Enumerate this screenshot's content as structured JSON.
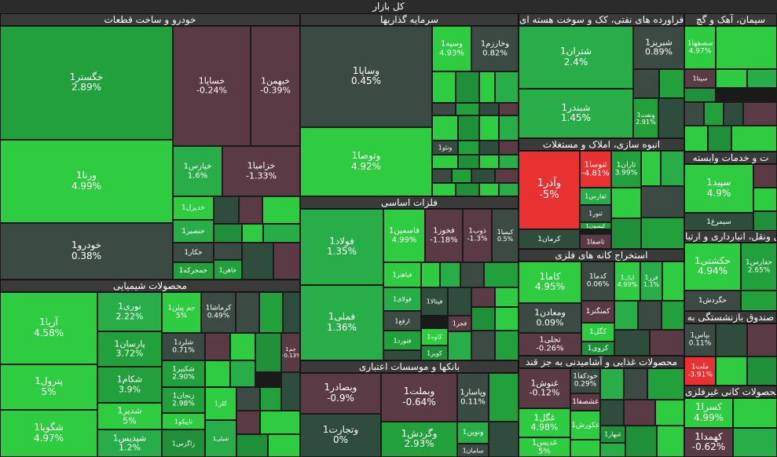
{
  "title": "کل بازار",
  "colors": {
    "strong_up": "#2ecc40",
    "up": "#22a03c",
    "mid_up": "#27ae48",
    "flat": "#2f4d3d",
    "down": "#5a3a44",
    "strong_down": "#e83131",
    "dark": "#3b4b44"
  },
  "chart_data": {
    "type": "treemap",
    "title": "کل بازار",
    "sectors": [
      {
        "name": "خودرو و ساخت قطعات",
        "items": [
          {
            "name": "خگستر1",
            "change": "2.89%"
          },
          {
            "name": "ورنا1",
            "change": "4.99%"
          },
          {
            "name": "خودرو1",
            "change": "0.38%"
          },
          {
            "name": "خساپا1",
            "change": "-0.24%"
          },
          {
            "name": "خبهمن1",
            "change": "-0.39%"
          },
          {
            "name": "خپارس1",
            "change": "1.6%"
          },
          {
            "name": "خزامیا1",
            "change": "-1.33%"
          },
          {
            "name": "خدیزل1",
            "change": ""
          },
          {
            "name": "خنصیر1",
            "change": ""
          },
          {
            "name": "خکار1",
            "change": ""
          },
          {
            "name": "خمحرکه1",
            "change": ""
          },
          {
            "name": "خاهن1",
            "change": ""
          }
        ]
      },
      {
        "name": "سرمایه گذاریها",
        "items": [
          {
            "name": "وساپا1",
            "change": "0.45%"
          },
          {
            "name": "وتوصا1",
            "change": "4.92%"
          },
          {
            "name": "وسپه1",
            "change": "4.93%"
          },
          {
            "name": "وخارزم1",
            "change": "0.82%"
          },
          {
            "name": "ونئو1",
            "change": ""
          }
        ]
      },
      {
        "name": "فراورده های نفتی، کک و سوخت هسته ای",
        "items": [
          {
            "name": "شتران1",
            "change": "2.4%"
          },
          {
            "name": "شبریز1",
            "change": "0.89%"
          },
          {
            "name": "شبندر1",
            "change": "1.45%"
          },
          {
            "name": "ونفت1",
            "change": "2.91%"
          }
        ]
      },
      {
        "name": "سیمان، آهک و گچ",
        "items": [
          {
            "name": "سصفها1",
            "change": "4.97%"
          },
          {
            "name": "سیتا1",
            "change": ""
          }
        ]
      },
      {
        "name": "انبوه سازی، املاک و مستغلات",
        "items": [
          {
            "name": "وآذر1",
            "change": "-5%"
          },
          {
            "name": "ثنوسا1",
            "change": "-4.81%"
          },
          {
            "name": "ثاران1",
            "change": "3.99%"
          },
          {
            "name": "ثفارس1",
            "change": ""
          },
          {
            "name": "ثنور1",
            "change": ""
          },
          {
            "name": "کیسون1",
            "change": ""
          },
          {
            "name": "ثامان1",
            "change": ""
          },
          {
            "name": "کرمان1",
            "change": ""
          },
          {
            "name": "ثاصفا1",
            "change": ""
          }
        ]
      },
      {
        "name": "ت و خدمات وابسته",
        "items": [
          {
            "name": "سپید1",
            "change": "4.9%"
          },
          {
            "name": "سیمرغ1",
            "change": ""
          }
        ]
      },
      {
        "name": "فلزات اساسی",
        "items": [
          {
            "name": "فولاد1",
            "change": "1.35%"
          },
          {
            "name": "فملی1",
            "change": "1.36%"
          },
          {
            "name": "فاسمین1",
            "change": "4.99%"
          },
          {
            "name": "فخوز1",
            "change": "-1.18%"
          },
          {
            "name": "ذوب1",
            "change": "-1.3%"
          },
          {
            "name": "کیمیا1",
            "change": "0.5%"
          },
          {
            "name": "فباهنر1",
            "change": ""
          },
          {
            "name": "فولای1",
            "change": ""
          },
          {
            "name": "ارفع1",
            "change": ""
          },
          {
            "name": "فنورد1",
            "change": ""
          },
          {
            "name": "فیتالا1",
            "change": ""
          },
          {
            "name": "فجر1",
            "change": ""
          },
          {
            "name": "کاوه1",
            "change": ""
          },
          {
            "name": "کویر1",
            "change": ""
          }
        ]
      },
      {
        "name": "استخراج کانه های فلزی",
        "items": [
          {
            "name": "کاما1",
            "change": "4.95%"
          },
          {
            "name": "کدما1",
            "change": "0.06%"
          },
          {
            "name": "ایال1",
            "change": "4.99%"
          },
          {
            "name": "فزر1",
            "change": "1.1%"
          },
          {
            "name": "ومعادن1",
            "change": "0.09%"
          },
          {
            "name": "کمنگنز1",
            "change": ""
          },
          {
            "name": "کگل1",
            "change": ""
          },
          {
            "name": "تجلی1",
            "change": "-0.26%"
          },
          {
            "name": "کروی1",
            "change": ""
          }
        ]
      },
      {
        "name": "محصولات شیمیایی",
        "items": [
          {
            "name": "آریا1",
            "change": "4.58%"
          },
          {
            "name": "پترول1",
            "change": "5%"
          },
          {
            "name": "شگویا1",
            "change": "4.97%"
          },
          {
            "name": "نوری1",
            "change": "2.22%"
          },
          {
            "name": "پارسان1",
            "change": "3.72%"
          },
          {
            "name": "شکام1",
            "change": "3.9%"
          },
          {
            "name": "شدیر1",
            "change": "5%"
          },
          {
            "name": "شپدیس1",
            "change": "1.2%"
          },
          {
            "name": "جم پیلن1",
            "change": "5%"
          },
          {
            "name": "کرماشا1",
            "change": "0.49%"
          },
          {
            "name": "شلرد1",
            "change": "0.71%"
          },
          {
            "name": "شکبیر1",
            "change": "2.90%"
          },
          {
            "name": "زنجان1",
            "change": "2.98%"
          },
          {
            "name": "تاپیکو1",
            "change": ""
          },
          {
            "name": "زاگرس1",
            "change": ""
          },
          {
            "name": "کلر1",
            "change": ""
          },
          {
            "name": "شپلی1",
            "change": ""
          },
          {
            "name": "جم1",
            "change": "-0.13%"
          }
        ]
      },
      {
        "name": "بانکها و موسسات اعتباری",
        "items": [
          {
            "name": "وبصادر1",
            "change": "-0.9%"
          },
          {
            "name": "وبملت1",
            "change": "-0.64%"
          },
          {
            "name": "وپاسار1",
            "change": "0.11%"
          },
          {
            "name": "وتجارت1",
            "change": "0%"
          },
          {
            "name": "وگردش1",
            "change": "2.93%"
          },
          {
            "name": "ونوین1",
            "change": ""
          },
          {
            "name": "سامان1",
            "change": ""
          }
        ]
      },
      {
        "name": "محصولات غذایی و آشامیدنی به جز قند",
        "items": [
          {
            "name": "غنوش1",
            "change": "-0.12%"
          },
          {
            "name": "خودکفا1",
            "change": "0.29%"
          },
          {
            "name": "غشصفا1",
            "change": ""
          },
          {
            "name": "غگل1",
            "change": "4.98%"
          },
          {
            "name": "غکورش1",
            "change": ""
          },
          {
            "name": "غدیس1",
            "change": "5%"
          },
          {
            "name": "غبهار1",
            "change": ""
          }
        ]
      },
      {
        "name": "حمل ونقل، انبارداری و ارتبا",
        "items": [
          {
            "name": "حکشتی1",
            "change": "4.94%"
          },
          {
            "name": "حفارس1",
            "change": "2.65%"
          },
          {
            "name": "حگردش1",
            "change": ""
          }
        ]
      },
      {
        "name": "صندوق بازنشستگی به",
        "items": [
          {
            "name": "بپاس1",
            "change": "0.11%"
          },
          {
            "name": "ملت1",
            "change": "-3.91%"
          }
        ]
      },
      {
        "name": "محصولات کانی غیرفلزی",
        "items": [
          {
            "name": "کسرا1",
            "change": "4.99%"
          },
          {
            "name": "کهمدا1",
            "change": "-0.62%"
          }
        ]
      }
    ]
  }
}
